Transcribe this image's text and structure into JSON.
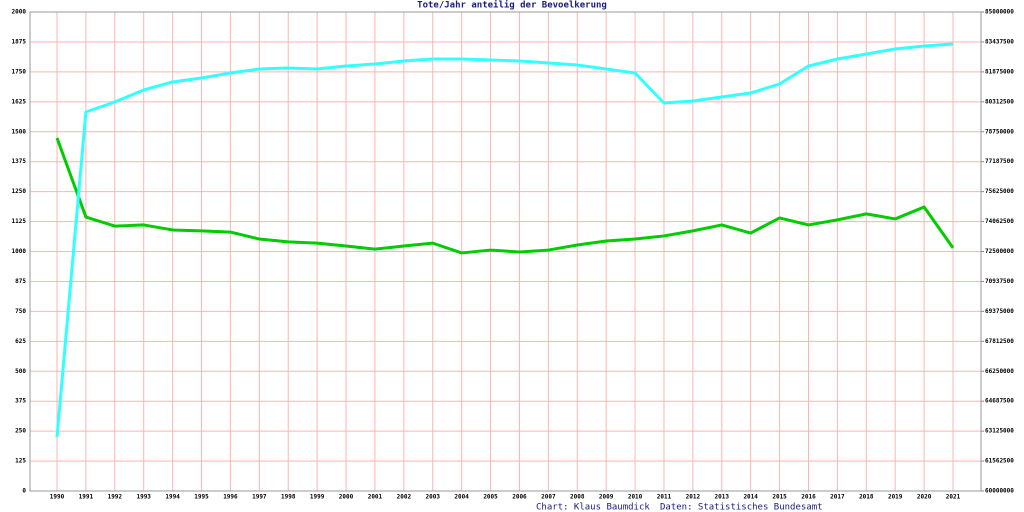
{
  "chart_data": {
    "type": "line",
    "title": "Tote/Jahr anteilig der Bevoelkerung",
    "credits": [
      "Chart: Klaus Baumdick",
      "Daten: Statistisches Bundesamt"
    ],
    "categories": [
      "1990",
      "1991",
      "1992",
      "1993",
      "1994",
      "1995",
      "1996",
      "1997",
      "1998",
      "1999",
      "2000",
      "2001",
      "2002",
      "2003",
      "2004",
      "2005",
      "2006",
      "2007",
      "2008",
      "2009",
      "2010",
      "2011",
      "2012",
      "2013",
      "2014",
      "2015",
      "2016",
      "2017",
      "2018",
      "2019",
      "2020",
      "2021"
    ],
    "series": [
      {
        "color": "#00cc00",
        "axis": "y",
        "values": [
          1474,
          1144,
          1106,
          1111,
          1090,
          1086,
          1081,
          1052,
          1040,
          1035,
          1023,
          1010,
          1023,
          1035,
          994,
          1006,
          998,
          1006,
          1027,
          1044,
          1052,
          1065,
          1086,
          1111,
          1077,
          1140,
          1111,
          1132,
          1157,
          1136,
          1186,
          1015
        ]
      },
      {
        "color": "#33ffff",
        "axis": "y2",
        "values": [
          62818000,
          79780000,
          80303000,
          80929000,
          81347000,
          81555000,
          81816000,
          82025000,
          82077000,
          82025000,
          82182000,
          82286000,
          82443000,
          82547000,
          82547000,
          82495000,
          82443000,
          82338000,
          82234000,
          82025000,
          81816000,
          80251000,
          80355000,
          80564000,
          80772000,
          81242000,
          82182000,
          82547000,
          82808000,
          83069000,
          83225000,
          83330000
        ]
      }
    ],
    "ylim": [
      0,
      2000
    ],
    "yticks": [
      0,
      125,
      250,
      375,
      500,
      625,
      750,
      875,
      1000,
      1125,
      1250,
      1375,
      1500,
      1625,
      1750,
      1875,
      2000
    ],
    "y2lim": [
      60000000,
      85000000
    ],
    "y2ticks": [
      60000000,
      61562500,
      63125000,
      64687500,
      66250000,
      67812500,
      69375000,
      70937500,
      72500000,
      74062500,
      75625000,
      77187500,
      78750000,
      80312500,
      81875000,
      83437500,
      85000000
    ],
    "grid": true,
    "grid_color": "#ffb3b3"
  }
}
